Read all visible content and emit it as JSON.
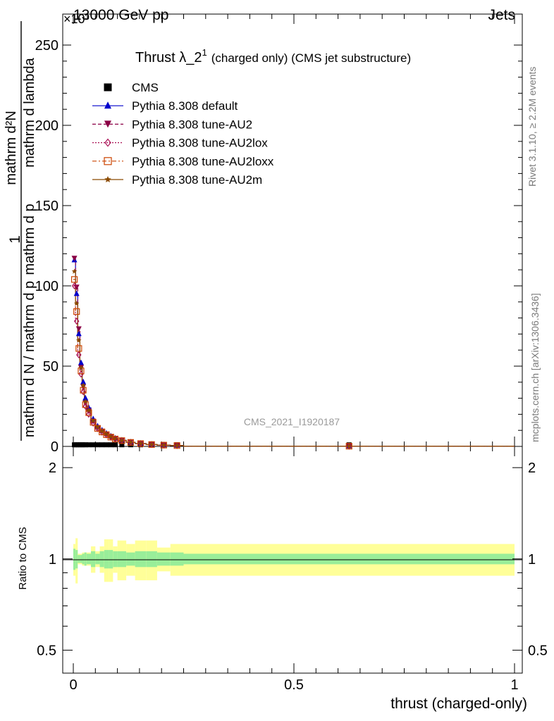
{
  "header": {
    "energy_label": "13000 GeV pp",
    "category_label": "Jets",
    "exponent_label": "×10³"
  },
  "side_labels": {
    "rivet": "Rivet 3.1.10, ≥ 2.2M events",
    "mcplots": "mcplots.cern.ch [arXiv:1306.3436]"
  },
  "main_plot": {
    "title": "Thrust λ_2¹ (charged only) (CMS jet substructure)",
    "title_main": "Thrust λ_2",
    "title_sup": "1",
    "title_rest": "(charged only) (CMS jet substructure)",
    "ylabel_top": "1",
    "ylabel_bottom": "mathrm d N / mathrm d p_T mathrm d lambda ... mathrm d²N / mathrm d p_T mathrm d lambda",
    "ylabel_num": "mathrm d²N",
    "ylabel_den": "mathrm d N / mathrm d p",
    "ylabel_den2": "mathrm d p",
    "ylabel_den3": "mathrm d lambda",
    "watermark": "CMS_2021_I1920187",
    "y_ticks": [
      "0",
      "50",
      "100",
      "150",
      "200",
      "250"
    ],
    "legend": [
      {
        "label": "CMS",
        "color": "#000000",
        "marker": "square-filled",
        "line": "none"
      },
      {
        "label": "Pythia 8.308 default",
        "color": "#0000cc",
        "marker": "triangle-up-filled",
        "line": "solid"
      },
      {
        "label": "Pythia 8.308 tune-AU2",
        "color": "#8b0045",
        "marker": "triangle-down-filled",
        "line": "dashed"
      },
      {
        "label": "Pythia 8.308 tune-AU2lox",
        "color": "#aa1155",
        "marker": "diamond-open",
        "line": "dotted"
      },
      {
        "label": "Pythia 8.308 tune-AU2loxx",
        "color": "#cc4400",
        "marker": "square-open",
        "line": "dashdot"
      },
      {
        "label": "Pythia 8.308 tune-AU2m",
        "color": "#8b4a00",
        "marker": "star",
        "line": "solid"
      }
    ]
  },
  "ratio_plot": {
    "ylabel": "Ratio to CMS",
    "y_ticks": [
      "0.5",
      "1",
      "2"
    ],
    "y_ticks_right": [
      "0.5",
      "1",
      "2"
    ]
  },
  "x_axis": {
    "label": "thrust (charged-only)",
    "ticks": [
      "0",
      "0.5",
      "1"
    ]
  },
  "chart_data": {
    "type": "line",
    "title": "Thrust λ_2¹ (charged only) (CMS jet substructure)",
    "xlabel": "thrust (charged-only)",
    "ylabel": "1/(mathrm d N / mathrm d p_T) · mathrm d²N / mathrm d p_T mathrm d lambda",
    "x_range": [
      0,
      1
    ],
    "y_range": [
      0,
      265000
    ],
    "y_multiplier": "×10³",
    "bin_edges": [
      0,
      0.005,
      0.01,
      0.015,
      0.02,
      0.025,
      0.03,
      0.04,
      0.05,
      0.06,
      0.07,
      0.08,
      0.09,
      0.1,
      0.12,
      0.14,
      0.165,
      0.19,
      0.22,
      0.25,
      1.0
    ],
    "x": [
      0.0025,
      0.0075,
      0.0125,
      0.0175,
      0.0225,
      0.0275,
      0.035,
      0.045,
      0.055,
      0.065,
      0.075,
      0.085,
      0.095,
      0.11,
      0.13,
      0.1525,
      0.1775,
      0.205,
      0.235,
      0.625
    ],
    "series": [
      {
        "name": "CMS",
        "values": [
          1,
          1,
          1,
          1,
          1,
          1,
          1,
          1,
          1,
          1,
          1,
          1,
          1,
          1,
          1,
          1,
          1,
          1,
          1,
          1
        ]
      },
      {
        "name": "Pythia 8.308 default",
        "values": [
          116,
          95,
          70,
          52,
          40,
          30,
          24,
          17,
          12.5,
          10,
          8,
          6.3,
          5,
          3.8,
          2.6,
          1.8,
          1.2,
          0.8,
          0.55,
          0.12
        ]
      },
      {
        "name": "Pythia 8.308 tune-AU2",
        "values": [
          117,
          99,
          73,
          49,
          37,
          27,
          22,
          15.5,
          11.5,
          9.3,
          7.5,
          5.9,
          4.7,
          3.6,
          2.5,
          1.7,
          1.1,
          0.75,
          0.5,
          0.11
        ]
      },
      {
        "name": "Pythia 8.308 tune-AU2lox",
        "values": [
          100,
          78,
          57,
          45,
          34,
          25,
          20,
          14.5,
          11,
          8.8,
          7.1,
          5.7,
          4.5,
          3.5,
          2.5,
          1.7,
          1.15,
          0.78,
          0.52,
          0.12
        ]
      },
      {
        "name": "Pythia 8.308 tune-AU2loxx",
        "values": [
          104,
          84,
          61,
          47,
          35,
          26,
          21,
          15,
          11.2,
          9,
          7.3,
          5.8,
          4.6,
          3.6,
          2.5,
          1.75,
          1.18,
          0.8,
          0.54,
          0.13
        ]
      },
      {
        "name": "Pythia 8.308 tune-AU2m",
        "values": [
          109,
          89,
          66,
          49,
          38,
          28,
          22.5,
          16,
          12,
          9.5,
          7.7,
          6.1,
          4.8,
          3.7,
          2.6,
          1.78,
          1.2,
          0.8,
          0.54,
          0.12
        ]
      }
    ],
    "ratio": {
      "y_range": [
        0.42,
        2.35
      ],
      "y_scale": "log",
      "green_band": [
        0.08,
        0.07,
        0.03,
        0.03,
        0.04,
        0.05,
        0.04,
        0.06,
        0.04,
        0.06,
        0.07,
        0.07,
        0.06,
        0.06,
        0.05,
        0.06,
        0.06,
        0.05,
        0.05,
        0.04
      ],
      "yellow_band": [
        0.12,
        0.17,
        0.04,
        0.04,
        0.05,
        0.05,
        0.05,
        0.1,
        0.06,
        0.1,
        0.16,
        0.16,
        0.1,
        0.15,
        0.12,
        0.15,
        0.15,
        0.09,
        0.12,
        0.12
      ]
    },
    "grid": false,
    "legend_position": "top-left"
  }
}
